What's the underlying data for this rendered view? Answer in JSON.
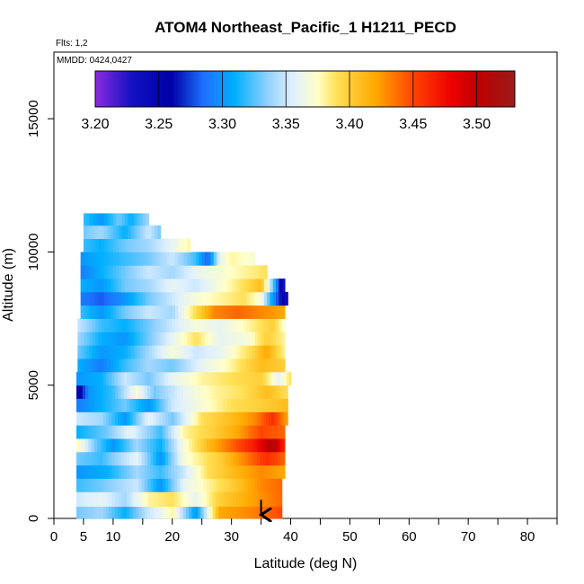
{
  "chart_data": {
    "type": "heatmap",
    "title": "ATOM4 Northeast_Pacific_1 H1211_PECD",
    "flights_label": "Flts: 1,2",
    "dates_label": "MMDD: 0424,0427",
    "xlabel": "Latitude (deg N)",
    "ylabel": "Altitude (m)",
    "xlim": [
      0,
      85
    ],
    "ylim": [
      0,
      17500
    ],
    "x_ticks": [
      0,
      5,
      10,
      20,
      30,
      40,
      50,
      60,
      70,
      80
    ],
    "x_minor_ticks": [
      15,
      25,
      35,
      45,
      55,
      65,
      75,
      85
    ],
    "y_ticks": [
      0,
      5000,
      10000,
      15000
    ],
    "colorbar": {
      "min": 3.2,
      "max": 3.53,
      "ticks": [
        "3.20",
        "3.25",
        "3.30",
        "3.35",
        "3.40",
        "3.45",
        "3.50"
      ],
      "tick_values": [
        3.2,
        3.25,
        3.3,
        3.35,
        3.4,
        3.45,
        3.5
      ],
      "stops": [
        {
          "v": 3.2,
          "color": "#8a2be2"
        },
        {
          "v": 3.23,
          "color": "#1010c0"
        },
        {
          "v": 3.26,
          "color": "#0000a8"
        },
        {
          "v": 3.285,
          "color": "#1e6fff"
        },
        {
          "v": 3.31,
          "color": "#00b0ff"
        },
        {
          "v": 3.335,
          "color": "#8fd0ff"
        },
        {
          "v": 3.355,
          "color": "#dff0ff"
        },
        {
          "v": 3.375,
          "color": "#ffffc8"
        },
        {
          "v": 3.39,
          "color": "#ffe055"
        },
        {
          "v": 3.42,
          "color": "#ffaa00"
        },
        {
          "v": 3.45,
          "color": "#ff4400"
        },
        {
          "v": 3.48,
          "color": "#ee0000"
        },
        {
          "v": 3.5,
          "color": "#c00000"
        },
        {
          "v": 3.53,
          "color": "#9b1b1b"
        }
      ]
    },
    "profile_bands": [
      {
        "alt_bottom": 0,
        "alt_top": 450,
        "lat_start": 3.8,
        "lat_end": 38.5,
        "profile": [
          [
            3.8,
            3.33
          ],
          [
            8,
            3.34
          ],
          [
            12,
            3.31
          ],
          [
            16,
            3.35
          ],
          [
            18,
            3.36
          ],
          [
            20,
            3.38
          ],
          [
            24,
            3.3
          ],
          [
            28,
            3.42
          ],
          [
            33,
            3.43
          ],
          [
            36,
            3.44
          ],
          [
            38.5,
            3.45
          ]
        ]
      },
      {
        "alt_bottom": 450,
        "alt_top": 1000,
        "lat_start": 3.8,
        "lat_end": 38.5,
        "profile": [
          [
            3.8,
            3.35
          ],
          [
            8,
            3.36
          ],
          [
            12,
            3.34
          ],
          [
            16,
            3.38
          ],
          [
            20,
            3.39
          ],
          [
            24,
            3.36
          ],
          [
            28,
            3.4
          ],
          [
            33,
            3.42
          ],
          [
            38.5,
            3.44
          ]
        ]
      },
      {
        "alt_bottom": 1000,
        "alt_top": 1500,
        "lat_start": 3.8,
        "lat_end": 38.5,
        "profile": [
          [
            3.8,
            3.32
          ],
          [
            8,
            3.33
          ],
          [
            14,
            3.35
          ],
          [
            18,
            3.3
          ],
          [
            22,
            3.36
          ],
          [
            26,
            3.38
          ],
          [
            30,
            3.4
          ],
          [
            35,
            3.43
          ],
          [
            38.5,
            3.44
          ]
        ]
      },
      {
        "alt_bottom": 1500,
        "alt_top": 2000,
        "lat_start": 3.8,
        "lat_end": 39,
        "profile": [
          [
            3.8,
            3.3
          ],
          [
            9,
            3.31
          ],
          [
            14,
            3.34
          ],
          [
            18,
            3.32
          ],
          [
            22,
            3.35
          ],
          [
            26,
            3.39
          ],
          [
            30,
            3.41
          ],
          [
            35,
            3.43
          ],
          [
            39,
            3.42
          ]
        ]
      },
      {
        "alt_bottom": 2000,
        "alt_top": 2500,
        "lat_start": 3.8,
        "lat_end": 39,
        "profile": [
          [
            3.8,
            3.33
          ],
          [
            8,
            3.32
          ],
          [
            14,
            3.36
          ],
          [
            18,
            3.3
          ],
          [
            22,
            3.37
          ],
          [
            28,
            3.4
          ],
          [
            32,
            3.43
          ],
          [
            36,
            3.46
          ],
          [
            39,
            3.44
          ]
        ]
      },
      {
        "alt_bottom": 2500,
        "alt_top": 3000,
        "lat_start": 3.8,
        "lat_end": 39,
        "profile": [
          [
            3.8,
            3.38
          ],
          [
            7,
            3.33
          ],
          [
            10,
            3.3
          ],
          [
            14,
            3.34
          ],
          [
            18,
            3.31
          ],
          [
            22,
            3.37
          ],
          [
            26,
            3.41
          ],
          [
            30,
            3.44
          ],
          [
            34,
            3.47
          ],
          [
            37,
            3.51
          ],
          [
            39,
            3.46
          ]
        ]
      },
      {
        "alt_bottom": 3000,
        "alt_top": 3500,
        "lat_start": 3.8,
        "lat_end": 39,
        "profile": [
          [
            3.8,
            3.31
          ],
          [
            9,
            3.33
          ],
          [
            13,
            3.36
          ],
          [
            18,
            3.32
          ],
          [
            22,
            3.38
          ],
          [
            27,
            3.4
          ],
          [
            31,
            3.42
          ],
          [
            35,
            3.45
          ],
          [
            39,
            3.44
          ]
        ]
      },
      {
        "alt_bottom": 3500,
        "alt_top": 4000,
        "lat_start": 3.8,
        "lat_end": 39.5,
        "profile": [
          [
            3.8,
            3.35
          ],
          [
            8,
            3.34
          ],
          [
            12,
            3.3
          ],
          [
            16,
            3.36
          ],
          [
            20,
            3.33
          ],
          [
            25,
            3.39
          ],
          [
            30,
            3.41
          ],
          [
            34,
            3.43
          ],
          [
            37,
            3.46
          ],
          [
            39.5,
            3.42
          ]
        ]
      },
      {
        "alt_bottom": 4000,
        "alt_top": 4500,
        "lat_start": 3.8,
        "lat_end": 39.5,
        "profile": [
          [
            3.8,
            3.29
          ],
          [
            8,
            3.31
          ],
          [
            12,
            3.33
          ],
          [
            16,
            3.3
          ],
          [
            20,
            3.35
          ],
          [
            25,
            3.37
          ],
          [
            30,
            3.39
          ],
          [
            35,
            3.4
          ],
          [
            39.5,
            3.41
          ]
        ]
      },
      {
        "alt_bottom": 4500,
        "alt_top": 5000,
        "lat_start": 3.8,
        "lat_end": 39.5,
        "profile": [
          [
            3.8,
            3.24
          ],
          [
            6,
            3.3
          ],
          [
            10,
            3.32
          ],
          [
            14,
            3.37
          ],
          [
            17,
            3.33
          ],
          [
            22,
            3.36
          ],
          [
            27,
            3.38
          ],
          [
            32,
            3.39
          ],
          [
            36,
            3.41
          ],
          [
            39.5,
            3.39
          ]
        ]
      },
      {
        "alt_bottom": 5000,
        "alt_top": 5500,
        "lat_start": 3.8,
        "lat_end": 40,
        "profile": [
          [
            3.8,
            3.3
          ],
          [
            8,
            3.31
          ],
          [
            12,
            3.35
          ],
          [
            16,
            3.33
          ],
          [
            20,
            3.36
          ],
          [
            25,
            3.38
          ],
          [
            30,
            3.39
          ],
          [
            35,
            3.4
          ],
          [
            38,
            3.36
          ],
          [
            40,
            3.39
          ]
        ]
      },
      {
        "alt_bottom": 5500,
        "alt_top": 6000,
        "lat_start": 4,
        "lat_end": 39,
        "profile": [
          [
            4,
            3.31
          ],
          [
            8,
            3.29
          ],
          [
            12,
            3.32
          ],
          [
            16,
            3.34
          ],
          [
            20,
            3.33
          ],
          [
            25,
            3.36
          ],
          [
            30,
            3.38
          ],
          [
            35,
            3.41
          ],
          [
            39,
            3.4
          ]
        ]
      },
      {
        "alt_bottom": 6000,
        "alt_top": 6500,
        "lat_start": 4,
        "lat_end": 39,
        "profile": [
          [
            4,
            3.33
          ],
          [
            8,
            3.3
          ],
          [
            12,
            3.31
          ],
          [
            16,
            3.34
          ],
          [
            20,
            3.37
          ],
          [
            24,
            3.35
          ],
          [
            28,
            3.36
          ],
          [
            33,
            3.39
          ],
          [
            36,
            3.42
          ],
          [
            39,
            3.38
          ]
        ]
      },
      {
        "alt_bottom": 6500,
        "alt_top": 7000,
        "lat_start": 4,
        "lat_end": 39,
        "profile": [
          [
            4,
            3.34
          ],
          [
            8,
            3.31
          ],
          [
            12,
            3.3
          ],
          [
            16,
            3.33
          ],
          [
            20,
            3.36
          ],
          [
            24,
            3.39
          ],
          [
            28,
            3.36
          ],
          [
            33,
            3.37
          ],
          [
            36,
            3.4
          ],
          [
            39,
            3.38
          ]
        ]
      },
      {
        "alt_bottom": 7000,
        "alt_top": 7500,
        "lat_start": 4,
        "lat_end": 39,
        "profile": [
          [
            4,
            3.35
          ],
          [
            8,
            3.32
          ],
          [
            12,
            3.31
          ],
          [
            16,
            3.33
          ],
          [
            20,
            3.35
          ],
          [
            24,
            3.37
          ],
          [
            28,
            3.36
          ],
          [
            33,
            3.38
          ],
          [
            37,
            3.4
          ],
          [
            39,
            3.37
          ]
        ]
      },
      {
        "alt_bottom": 7500,
        "alt_top": 8000,
        "lat_start": 4.5,
        "lat_end": 39,
        "profile": [
          [
            4.5,
            3.32
          ],
          [
            8,
            3.3
          ],
          [
            12,
            3.33
          ],
          [
            16,
            3.35
          ],
          [
            20,
            3.34
          ],
          [
            23,
            3.38
          ],
          [
            27,
            3.43
          ],
          [
            31,
            3.44
          ],
          [
            35,
            3.43
          ],
          [
            39,
            3.42
          ]
        ]
      },
      {
        "alt_bottom": 8000,
        "alt_top": 8500,
        "lat_start": 4.5,
        "lat_end": 39.5,
        "profile": [
          [
            4.5,
            3.29
          ],
          [
            8,
            3.28
          ],
          [
            12,
            3.3
          ],
          [
            16,
            3.33
          ],
          [
            20,
            3.35
          ],
          [
            24,
            3.37
          ],
          [
            28,
            3.38
          ],
          [
            32,
            3.39
          ],
          [
            35,
            3.37
          ],
          [
            37,
            3.3
          ],
          [
            39.5,
            3.23
          ]
        ]
      },
      {
        "alt_bottom": 8500,
        "alt_top": 9000,
        "lat_start": 4.5,
        "lat_end": 39,
        "profile": [
          [
            4.5,
            3.31
          ],
          [
            8,
            3.3
          ],
          [
            12,
            3.33
          ],
          [
            16,
            3.34
          ],
          [
            20,
            3.36
          ],
          [
            24,
            3.35
          ],
          [
            28,
            3.37
          ],
          [
            32,
            3.39
          ],
          [
            35,
            3.41
          ],
          [
            37,
            3.33
          ],
          [
            39,
            3.22
          ]
        ]
      },
      {
        "alt_bottom": 9000,
        "alt_top": 9500,
        "lat_start": 4.5,
        "lat_end": 36,
        "profile": [
          [
            4.5,
            3.29
          ],
          [
            8,
            3.31
          ],
          [
            12,
            3.33
          ],
          [
            16,
            3.35
          ],
          [
            20,
            3.34
          ],
          [
            24,
            3.36
          ],
          [
            28,
            3.37
          ],
          [
            32,
            3.38
          ],
          [
            36,
            3.39
          ]
        ]
      },
      {
        "alt_bottom": 9500,
        "alt_top": 10000,
        "lat_start": 4.5,
        "lat_end": 34,
        "profile": [
          [
            4.5,
            3.3
          ],
          [
            8,
            3.31
          ],
          [
            12,
            3.32
          ],
          [
            16,
            3.33
          ],
          [
            20,
            3.35
          ],
          [
            24,
            3.32
          ],
          [
            26,
            3.28
          ],
          [
            28,
            3.36
          ],
          [
            30,
            3.38
          ],
          [
            34,
            3.37
          ]
        ]
      },
      {
        "alt_bottom": 10000,
        "alt_top": 10500,
        "lat_start": 5,
        "lat_end": 23,
        "profile": [
          [
            5,
            3.32
          ],
          [
            8,
            3.31
          ],
          [
            12,
            3.33
          ],
          [
            16,
            3.34
          ],
          [
            20,
            3.36
          ],
          [
            23,
            3.38
          ]
        ]
      },
      {
        "alt_bottom": 10500,
        "alt_top": 11000,
        "lat_start": 5,
        "lat_end": 18,
        "profile": [
          [
            5,
            3.33
          ],
          [
            8,
            3.34
          ],
          [
            12,
            3.31
          ],
          [
            16,
            3.35
          ],
          [
            18,
            3.33
          ]
        ]
      },
      {
        "alt_bottom": 11000,
        "alt_top": 11450,
        "lat_start": 5,
        "lat_end": 16,
        "profile": [
          [
            5,
            3.32
          ],
          [
            8,
            3.3
          ],
          [
            11,
            3.33
          ],
          [
            13,
            3.31
          ],
          [
            16,
            3.34
          ]
        ]
      }
    ],
    "marker": {
      "type": "arrow-down",
      "x": 35,
      "y_top": 700,
      "y_bottom": 0
    }
  }
}
